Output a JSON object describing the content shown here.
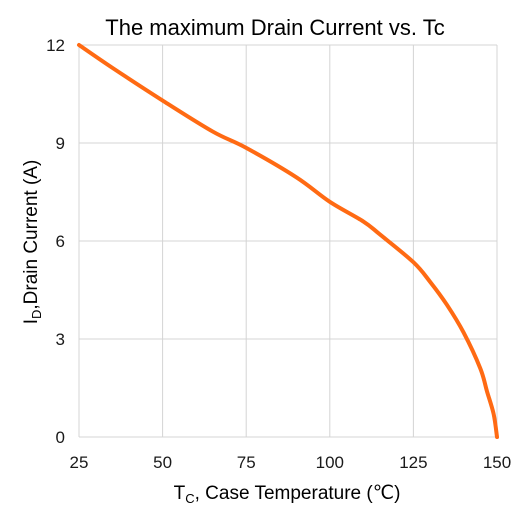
{
  "chart_data": {
    "type": "line",
    "title": "The maximum Drain Current vs. Tc",
    "xlabel": {
      "main": "T",
      "sub": "C",
      "rest": ", Case Temperature (℃)"
    },
    "ylabel": {
      "main": "I",
      "sub": "D",
      "rest": ",Drain Current (A)"
    },
    "xlim": [
      25,
      150
    ],
    "ylim": [
      0,
      12
    ],
    "x_ticks": [
      25,
      50,
      75,
      100,
      125,
      150
    ],
    "y_ticks": [
      0,
      3,
      6,
      9,
      12
    ],
    "grid": true,
    "series": [
      {
        "color": "#ff6a13",
        "x": [
          25,
          35,
          50,
          65,
          75,
          90,
          100,
          110,
          115,
          125,
          130,
          135,
          140,
          145,
          147,
          149,
          150
        ],
        "y": [
          12,
          11.3,
          10.3,
          9.35,
          8.85,
          7.95,
          7.2,
          6.6,
          6.2,
          5.35,
          4.75,
          4.05,
          3.2,
          2.1,
          1.4,
          0.7,
          0
        ]
      }
    ]
  }
}
